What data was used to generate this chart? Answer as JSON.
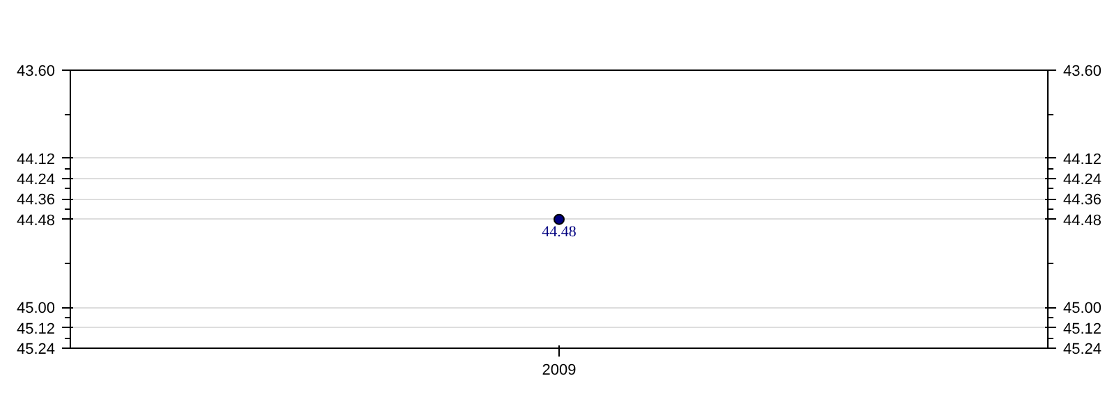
{
  "chart_data": {
    "type": "scatter",
    "categories": [
      "2009"
    ],
    "series": [
      {
        "color": "#000080",
        "values": [
          44.48
        ]
      }
    ],
    "data_labels": true,
    "ylim": [
      45.24,
      43.6
    ],
    "yticks": [
      {
        "value": 43.6,
        "label": "43.60"
      },
      {
        "value": 44.12,
        "label": "44.12"
      },
      {
        "value": 44.24,
        "label": "44.24"
      },
      {
        "value": 44.36,
        "label": "44.36"
      },
      {
        "value": 44.48,
        "label": "44.48"
      },
      {
        "value": 45.0,
        "label": "45.00"
      },
      {
        "value": 45.12,
        "label": "45.12"
      },
      {
        "value": 45.24,
        "label": "45.24"
      }
    ],
    "grid": "y",
    "marker": "circle"
  }
}
